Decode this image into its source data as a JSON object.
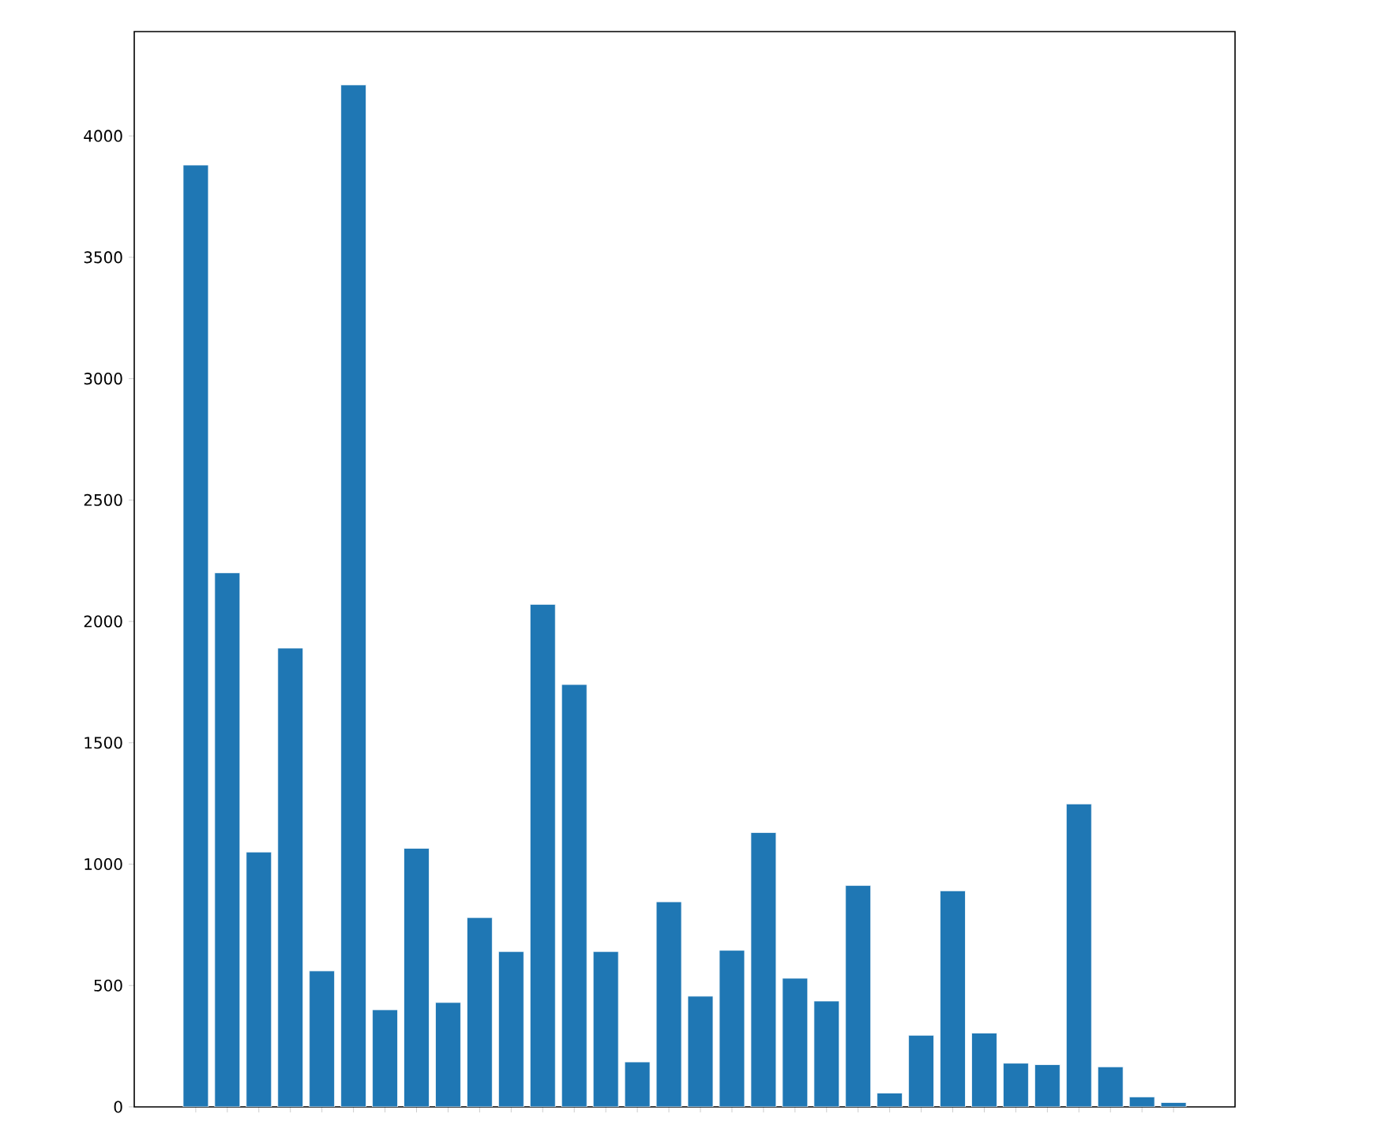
{
  "chart_data": {
    "type": "bar",
    "categories": [
      null,
      null,
      null,
      null,
      null,
      null,
      null,
      null,
      null,
      null,
      null,
      null,
      null,
      null,
      null,
      null,
      null,
      null,
      null,
      null,
      null,
      null,
      null,
      null,
      null,
      null,
      null,
      null,
      null,
      null,
      null,
      null
    ],
    "values": [
      3880,
      2200,
      1050,
      1890,
      560,
      4210,
      400,
      1065,
      430,
      780,
      640,
      2070,
      1740,
      640,
      185,
      845,
      456,
      645,
      1130,
      530,
      436,
      912,
      57,
      295,
      890,
      304,
      180,
      174,
      1248,
      165,
      41,
      18
    ],
    "color": "#1f77b4",
    "ylim": [
      0,
      4430
    ],
    "yticks": [
      0,
      500,
      1000,
      1500,
      2000,
      2500,
      3000,
      3500,
      4000
    ],
    "tick_labels": "y"
  }
}
